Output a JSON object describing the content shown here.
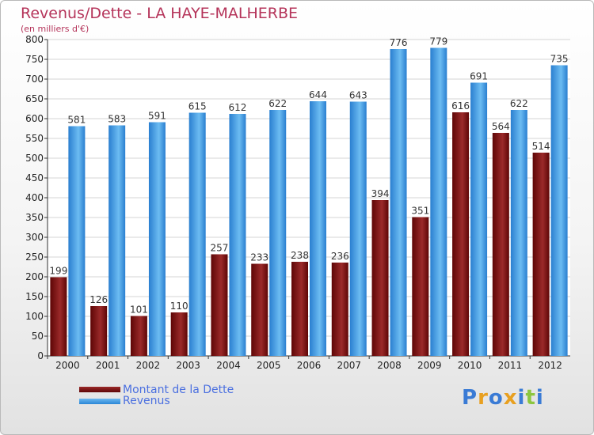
{
  "chart_data": {
    "type": "bar",
    "title": "Revenus/Dette - LA HAYE-MALHERBE",
    "subtitle": "(en milliers d'€)",
    "categories": [
      "2000",
      "2001",
      "2002",
      "2003",
      "2004",
      "2005",
      "2006",
      "2007",
      "2008",
      "2009",
      "2010",
      "2011",
      "2012"
    ],
    "series": [
      {
        "name": "Montant de la Dette",
        "color": "#7a1616",
        "values": [
          199,
          126,
          101,
          110,
          257,
          233,
          238,
          236,
          394,
          351,
          616,
          564,
          514
        ]
      },
      {
        "name": "Revenus",
        "color": "#4aa3e8",
        "values": [
          581,
          583,
          591,
          615,
          612,
          622,
          644,
          643,
          776,
          779,
          691,
          622,
          735
        ]
      }
    ],
    "ylim": [
      0,
      800
    ],
    "yticks": [
      0,
      50,
      100,
      150,
      200,
      250,
      300,
      350,
      400,
      450,
      500,
      550,
      600,
      650,
      700,
      750,
      800
    ],
    "grid": true,
    "legend": "bottom-left"
  },
  "logo": {
    "text": "Proxiti",
    "colors": [
      "#3a7bd5",
      "#e8a020",
      "#3a7bd5",
      "#e8a020",
      "#3a7bd5",
      "#8cc63f",
      "#3a7bd5"
    ]
  }
}
